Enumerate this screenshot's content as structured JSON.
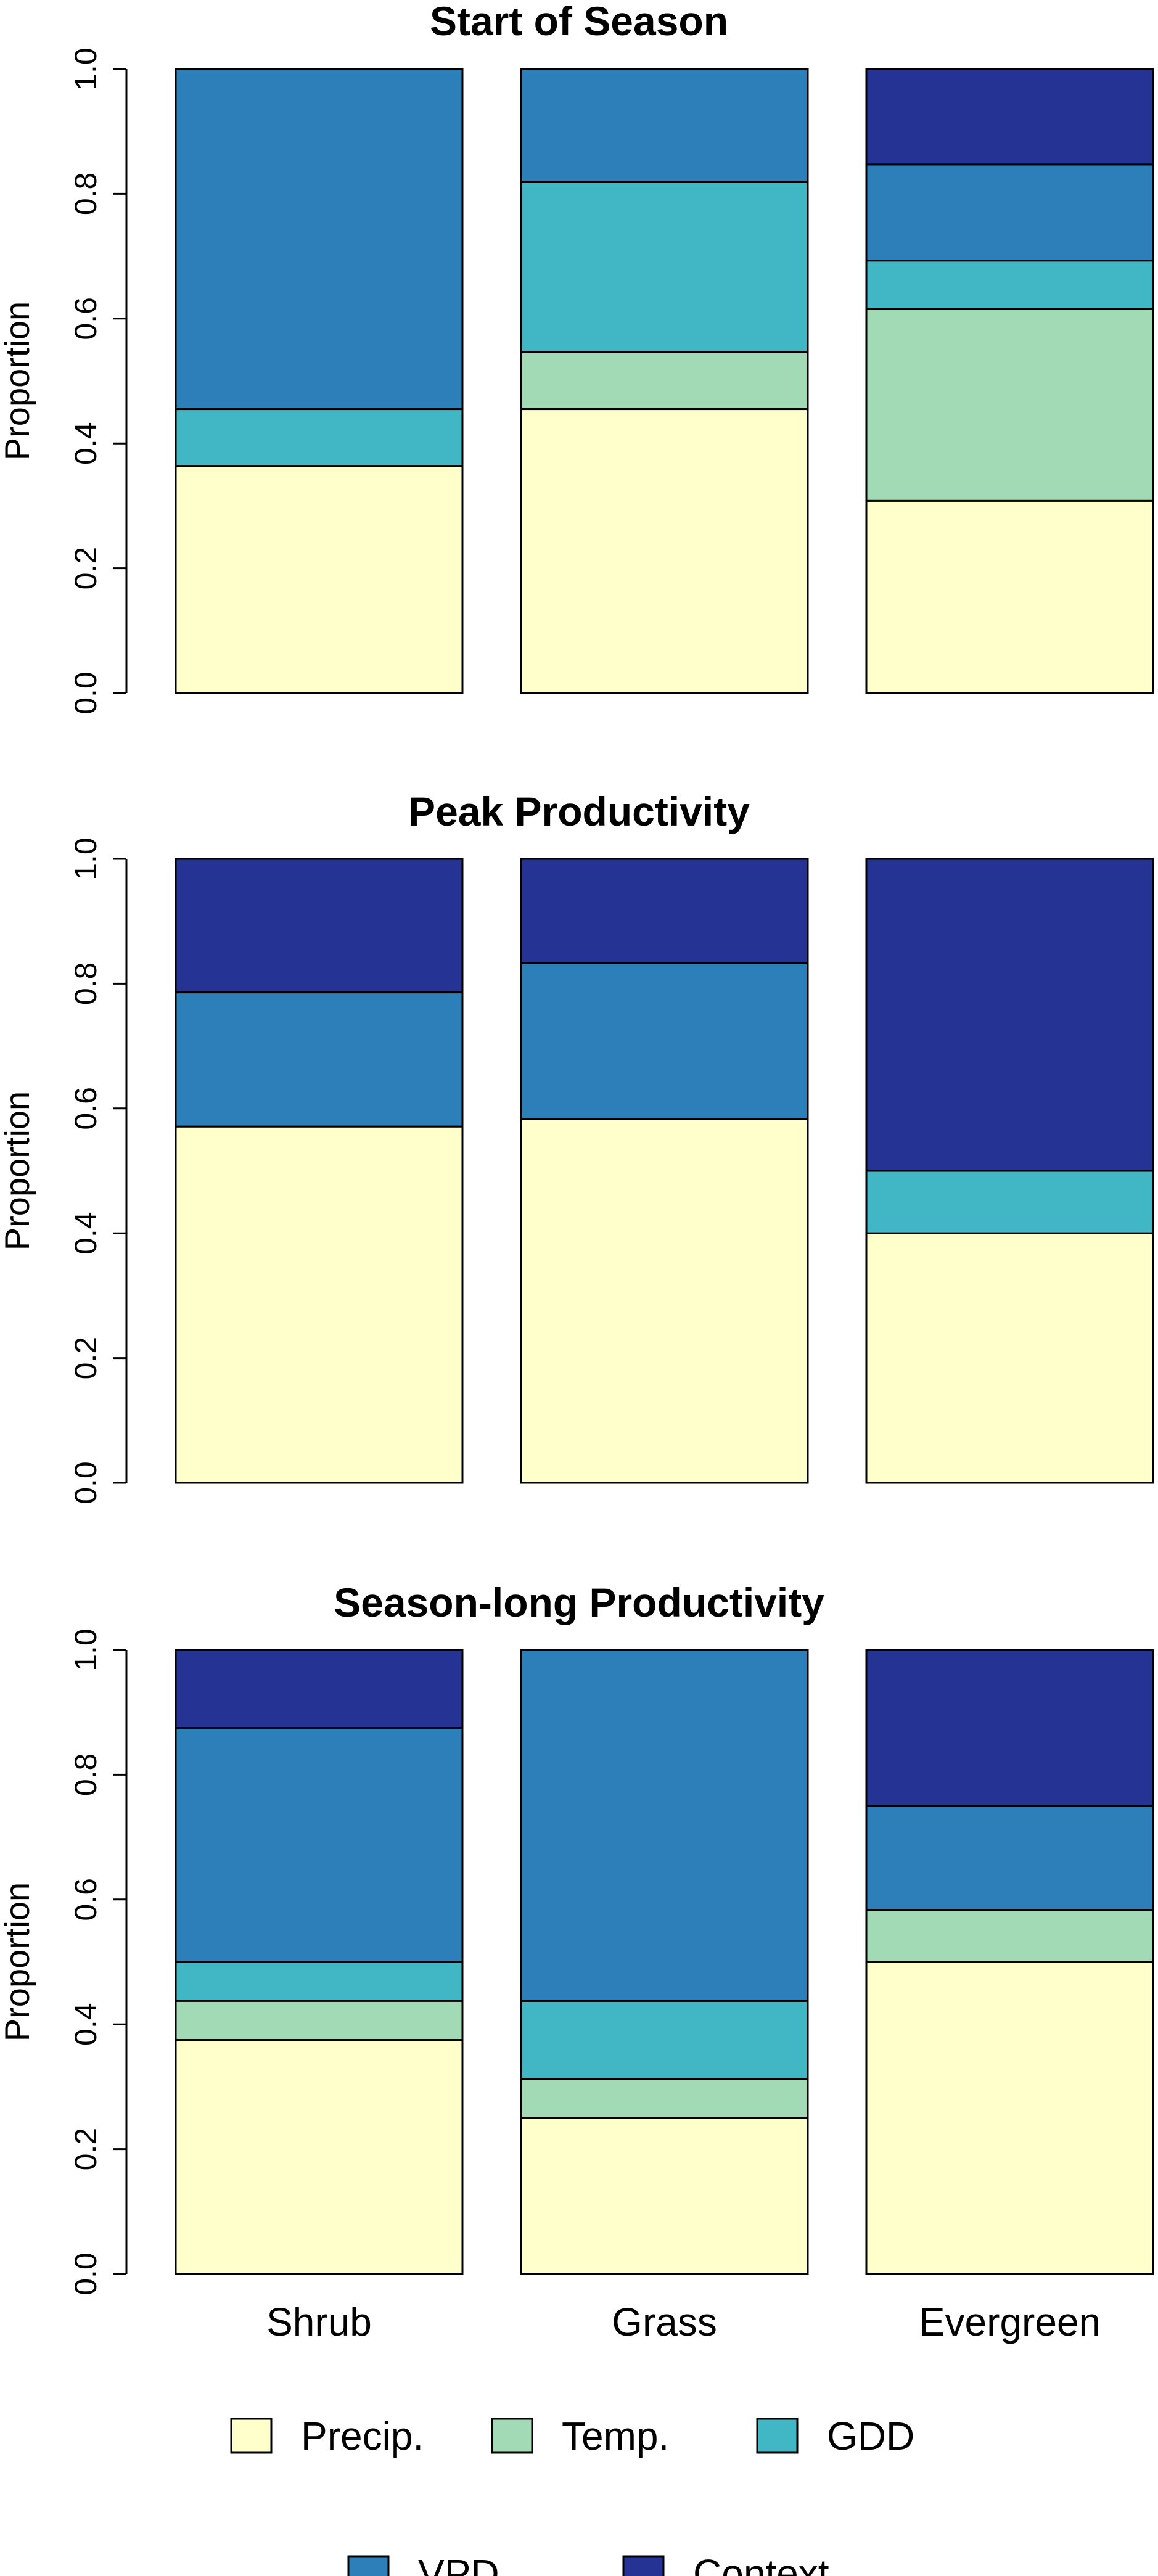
{
  "chart_data": {
    "type": "bar",
    "stacked": true,
    "categories": [
      "Shrub",
      "Grass",
      "Evergreen"
    ],
    "ylabel": "Proportion",
    "ylim": [
      0,
      1
    ],
    "yticks": [
      "0.0",
      "0.2",
      "0.4",
      "0.6",
      "0.8",
      "1.0"
    ],
    "series_names": [
      "Precip.",
      "Temp.",
      "GDD",
      "VPD",
      "Context"
    ],
    "colors": [
      "#ffffcc",
      "#a1dab4",
      "#41b6c4",
      "#2c7fb8",
      "#253494"
    ],
    "legend_position": "bottom",
    "panels": [
      {
        "title": "Start of Season",
        "series": [
          {
            "name": "Precip.",
            "values": [
              0.364,
              0.455,
              0.308
            ]
          },
          {
            "name": "Temp.",
            "values": [
              0.0,
              0.091,
              0.308
            ]
          },
          {
            "name": "GDD",
            "values": [
              0.091,
              0.273,
              0.077
            ]
          },
          {
            "name": "VPD",
            "values": [
              0.545,
              0.181,
              0.154
            ]
          },
          {
            "name": "Context",
            "values": [
              0.0,
              0.0,
              0.153
            ]
          }
        ]
      },
      {
        "title": "Peak Productivity",
        "series": [
          {
            "name": "Precip.",
            "values": [
              0.571,
              0.583,
              0.4
            ]
          },
          {
            "name": "Temp.",
            "values": [
              0.0,
              0.0,
              0.0
            ]
          },
          {
            "name": "GDD",
            "values": [
              0.0,
              0.0,
              0.1
            ]
          },
          {
            "name": "VPD",
            "values": [
              0.215,
              0.25,
              0.0
            ]
          },
          {
            "name": "Context",
            "values": [
              0.214,
              0.167,
              0.5
            ]
          }
        ]
      },
      {
        "title": "Season-long Productivity",
        "series": [
          {
            "name": "Precip.",
            "values": [
              0.375,
              0.25,
              0.5
            ]
          },
          {
            "name": "Temp.",
            "values": [
              0.0625,
              0.0625,
              0.083
            ]
          },
          {
            "name": "GDD",
            "values": [
              0.0625,
              0.125,
              0.0
            ]
          },
          {
            "name": "VPD",
            "values": [
              0.375,
              0.5625,
              0.167
            ]
          },
          {
            "name": "Context",
            "values": [
              0.125,
              0.0,
              0.25
            ]
          }
        ]
      }
    ]
  }
}
